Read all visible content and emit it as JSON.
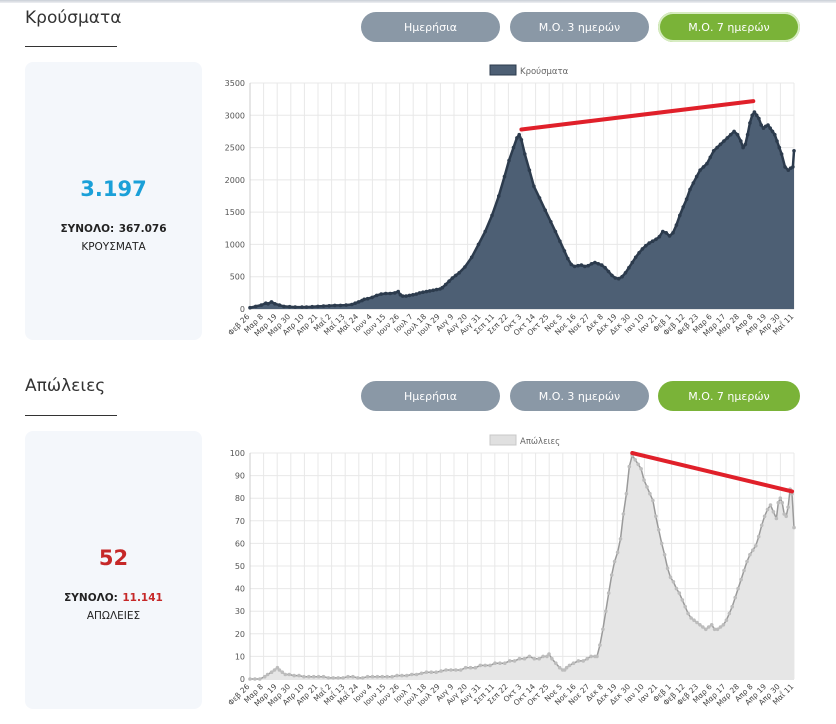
{
  "buttons": {
    "daily": "Ημερήσια",
    "ma3": "Μ.Ο. 3 ημερών",
    "ma7": "Μ.Ο. 7 ημερών"
  },
  "colors": {
    "blue": "#1aa0d8",
    "red": "#c62828",
    "green": "#7ab338",
    "grey": "#8a98a6",
    "cases_fill": "#4d5f74",
    "cases_line": "#2c3b4d",
    "deaths_fill": "#e6e6e6",
    "deaths_line": "#9a9a9a",
    "trend": "#e0202a"
  },
  "cases": {
    "title": "Κρούσματα",
    "value": "3.197",
    "total_label": "ΣΥΝΟΛΟ:",
    "total_value": "367.076",
    "label": "ΚΡΟΥΣΜΑΤΑ"
  },
  "deaths": {
    "title": "Απώλειες",
    "value": "52",
    "total_label": "ΣΥΝΟΛΟ:",
    "total_value": "11.141",
    "label": "ΑΠΩΛΕΙΕΣ"
  },
  "chart_data": [
    {
      "type": "area",
      "series_name": "Κρούσματα",
      "ylim": [
        0,
        3500
      ],
      "yticks": [
        0,
        500,
        1000,
        1500,
        2000,
        2500,
        3000,
        3500
      ],
      "x_labels": [
        "Φεβ 26",
        "Μαρ 8",
        "Μαρ 19",
        "Μαρ 30",
        "Απρ 10",
        "Απρ 21",
        "Μαΐ 2",
        "Μαΐ 13",
        "Μαΐ 24",
        "Ιουν 4",
        "Ιουν 15",
        "Ιουν 26",
        "Ιουλ 7",
        "Ιουλ 18",
        "Ιουλ 29",
        "Αυγ 9",
        "Αυγ 20",
        "Αυγ 31",
        "Σεπ 11",
        "Σεπ 22",
        "Οκτ 3",
        "Οκτ 14",
        "Οκτ 25",
        "Νοε 5",
        "Νοε 16",
        "Νοε 27",
        "Δεκ 8",
        "Δεκ 19",
        "Δεκ 30",
        "Ιαν 10",
        "Ιαν 21",
        "Φεβ 1",
        "Φεβ 12",
        "Φεβ 23",
        "Μαρ 6",
        "Μαρ 17",
        "Μαρ 28",
        "Απρ 8",
        "Απρ 19",
        "Απρ 30",
        "Μαΐ 11"
      ],
      "points": [
        [
          0,
          20
        ],
        [
          5,
          40
        ],
        [
          10,
          60
        ],
        [
          14,
          90
        ],
        [
          16,
          80
        ],
        [
          19,
          110
        ],
        [
          22,
          80
        ],
        [
          26,
          60
        ],
        [
          30,
          40
        ],
        [
          35,
          35
        ],
        [
          40,
          30
        ],
        [
          46,
          30
        ],
        [
          50,
          30
        ],
        [
          55,
          35
        ],
        [
          60,
          40
        ],
        [
          65,
          45
        ],
        [
          70,
          50
        ],
        [
          75,
          55
        ],
        [
          80,
          55
        ],
        [
          85,
          60
        ],
        [
          90,
          70
        ],
        [
          93,
          90
        ],
        [
          96,
          110
        ],
        [
          99,
          130
        ],
        [
          101,
          150
        ],
        [
          104,
          160
        ],
        [
          108,
          180
        ],
        [
          112,
          210
        ],
        [
          116,
          230
        ],
        [
          120,
          240
        ],
        [
          124,
          240
        ],
        [
          128,
          250
        ],
        [
          131,
          270
        ],
        [
          133,
          220
        ],
        [
          135,
          200
        ],
        [
          138,
          200
        ],
        [
          141,
          210
        ],
        [
          144,
          220
        ],
        [
          147,
          230
        ],
        [
          150,
          250
        ],
        [
          153,
          260
        ],
        [
          156,
          270
        ],
        [
          159,
          280
        ],
        [
          162,
          290
        ],
        [
          165,
          300
        ],
        [
          168,
          310
        ],
        [
          170,
          330
        ],
        [
          173,
          380
        ],
        [
          176,
          430
        ],
        [
          179,
          480
        ],
        [
          182,
          520
        ],
        [
          185,
          560
        ],
        [
          190,
          650
        ],
        [
          196,
          800
        ],
        [
          202,
          1000
        ],
        [
          208,
          1200
        ],
        [
          214,
          1450
        ],
        [
          220,
          1750
        ],
        [
          225,
          2050
        ],
        [
          229,
          2300
        ],
        [
          233,
          2500
        ],
        [
          236,
          2650
        ],
        [
          238,
          2700
        ],
        [
          240,
          2620
        ],
        [
          243,
          2400
        ],
        [
          247,
          2150
        ],
        [
          251,
          1900
        ],
        [
          256,
          1720
        ],
        [
          261,
          1530
        ],
        [
          266,
          1350
        ],
        [
          270,
          1200
        ],
        [
          274,
          1050
        ],
        [
          278,
          900
        ],
        [
          281,
          780
        ],
        [
          284,
          690
        ],
        [
          287,
          660
        ],
        [
          290,
          670
        ],
        [
          293,
          680
        ],
        [
          296,
          660
        ],
        [
          299,
          670
        ],
        [
          302,
          700
        ],
        [
          305,
          720
        ],
        [
          308,
          700
        ],
        [
          311,
          680
        ],
        [
          314,
          640
        ],
        [
          317,
          580
        ],
        [
          320,
          520
        ],
        [
          323,
          480
        ],
        [
          326,
          470
        ],
        [
          329,
          500
        ],
        [
          332,
          560
        ],
        [
          335,
          640
        ],
        [
          338,
          720
        ],
        [
          341,
          800
        ],
        [
          344,
          870
        ],
        [
          347,
          930
        ],
        [
          350,
          980
        ],
        [
          353,
          1020
        ],
        [
          356,
          1050
        ],
        [
          359,
          1080
        ],
        [
          362,
          1120
        ],
        [
          365,
          1200
        ],
        [
          368,
          1180
        ],
        [
          371,
          1130
        ],
        [
          374,
          1180
        ],
        [
          377,
          1300
        ],
        [
          380,
          1450
        ],
        [
          383,
          1580
        ],
        [
          386,
          1700
        ],
        [
          389,
          1850
        ],
        [
          392,
          1950
        ],
        [
          395,
          2050
        ],
        [
          398,
          2150
        ],
        [
          401,
          2200
        ],
        [
          404,
          2250
        ],
        [
          407,
          2350
        ],
        [
          410,
          2450
        ],
        [
          413,
          2500
        ],
        [
          416,
          2550
        ],
        [
          419,
          2600
        ],
        [
          422,
          2650
        ],
        [
          425,
          2700
        ],
        [
          428,
          2750
        ],
        [
          431,
          2700
        ],
        [
          434,
          2600
        ],
        [
          436,
          2500
        ],
        [
          438,
          2550
        ],
        [
          440,
          2700
        ],
        [
          442,
          2880
        ],
        [
          444,
          3000
        ],
        [
          446,
          3050
        ],
        [
          448,
          3000
        ],
        [
          450,
          2950
        ],
        [
          452,
          2850
        ],
        [
          454,
          2800
        ],
        [
          456,
          2830
        ],
        [
          458,
          2850
        ],
        [
          460,
          2800
        ],
        [
          462,
          2750
        ],
        [
          464,
          2700
        ],
        [
          466,
          2600
        ],
        [
          468,
          2500
        ],
        [
          470,
          2400
        ],
        [
          473,
          2200
        ],
        [
          476,
          2150
        ],
        [
          478,
          2180
        ],
        [
          480,
          2200
        ],
        [
          481,
          2450
        ]
      ],
      "trend": [
        [
          240,
          2780
        ],
        [
          445,
          3220
        ]
      ]
    },
    {
      "type": "area",
      "series_name": "Απώλειες",
      "ylim": [
        0,
        100
      ],
      "yticks": [
        0,
        10,
        20,
        30,
        40,
        50,
        60,
        70,
        80,
        90,
        100
      ],
      "x_labels": [
        "Φεβ 26",
        "Μαρ 8",
        "Μαρ 19",
        "Μαρ 30",
        "Απρ 10",
        "Απρ 21",
        "Μαΐ 2",
        "Μαΐ 13",
        "Μαΐ 24",
        "Ιουν 4",
        "Ιουν 15",
        "Ιουν 26",
        "Ιουλ 7",
        "Ιουλ 18",
        "Ιουλ 29",
        "Αυγ 9",
        "Αυγ 20",
        "Αυγ 31",
        "Σεπ 11",
        "Σεπ 22",
        "Οκτ 3",
        "Οκτ 14",
        "Οκτ 25",
        "Νοε 5",
        "Νοε 16",
        "Νοε 27",
        "Δεκ 8",
        "Δεκ 19",
        "Δεκ 30",
        "Ιαν 10",
        "Ιαν 21",
        "Φεβ 1",
        "Φεβ 12",
        "Φεβ 23",
        "Μαρ 6",
        "Μαρ 17",
        "Μαρ 28",
        "Απρ 8",
        "Απρ 19",
        "Απρ 30",
        "Μαΐ 11"
      ],
      "points": [
        [
          0,
          0
        ],
        [
          5,
          0
        ],
        [
          10,
          0
        ],
        [
          15,
          1
        ],
        [
          18,
          2
        ],
        [
          22,
          3
        ],
        [
          25,
          4
        ],
        [
          28,
          5
        ],
        [
          30,
          4
        ],
        [
          33,
          3
        ],
        [
          36,
          2
        ],
        [
          40,
          2
        ],
        [
          45,
          1.5
        ],
        [
          50,
          1.5
        ],
        [
          55,
          1
        ],
        [
          60,
          1
        ],
        [
          65,
          1
        ],
        [
          70,
          1
        ],
        [
          75,
          1
        ],
        [
          80,
          0.5
        ],
        [
          85,
          0.5
        ],
        [
          90,
          0.5
        ],
        [
          95,
          0.5
        ],
        [
          100,
          1
        ],
        [
          105,
          1
        ],
        [
          110,
          0.5
        ],
        [
          115,
          0.5
        ],
        [
          120,
          1
        ],
        [
          125,
          1
        ],
        [
          130,
          1
        ],
        [
          135,
          1
        ],
        [
          140,
          1
        ],
        [
          145,
          1
        ],
        [
          150,
          1.5
        ],
        [
          155,
          1.5
        ],
        [
          160,
          1.5
        ],
        [
          165,
          2
        ],
        [
          170,
          2
        ],
        [
          175,
          2.5
        ],
        [
          180,
          3
        ],
        [
          185,
          3
        ],
        [
          190,
          3
        ],
        [
          195,
          3.5
        ],
        [
          200,
          4
        ],
        [
          205,
          4
        ],
        [
          210,
          4
        ],
        [
          215,
          4
        ],
        [
          220,
          5
        ],
        [
          225,
          5
        ],
        [
          230,
          5
        ],
        [
          235,
          6
        ],
        [
          240,
          6
        ],
        [
          245,
          6
        ],
        [
          250,
          7
        ],
        [
          255,
          7
        ],
        [
          260,
          7
        ],
        [
          265,
          8
        ],
        [
          270,
          8
        ],
        [
          275,
          9
        ],
        [
          280,
          9
        ],
        [
          285,
          10
        ],
        [
          290,
          9
        ],
        [
          295,
          9
        ],
        [
          299,
          10
        ],
        [
          303,
          10
        ],
        [
          305,
          11
        ],
        [
          308,
          9
        ],
        [
          312,
          7
        ],
        [
          316,
          5
        ],
        [
          319,
          4
        ],
        [
          321,
          4
        ],
        [
          323,
          5
        ],
        [
          326,
          6
        ],
        [
          330,
          7
        ],
        [
          335,
          8
        ],
        [
          340,
          8
        ],
        [
          344,
          9
        ],
        [
          348,
          10
        ],
        [
          352,
          10
        ],
        [
          354,
          10
        ],
        [
          357,
          15
        ],
        [
          360,
          22
        ],
        [
          363,
          30
        ],
        [
          366,
          38
        ],
        [
          369,
          46
        ],
        [
          372,
          52
        ],
        [
          375,
          56
        ],
        [
          378,
          62
        ],
        [
          381,
          73
        ],
        [
          384,
          82
        ],
        [
          387,
          94
        ],
        [
          390,
          99
        ],
        [
          393,
          97
        ],
        [
          396,
          95
        ],
        [
          399,
          93
        ],
        [
          402,
          88
        ],
        [
          405,
          85
        ],
        [
          408,
          82
        ],
        [
          411,
          79
        ],
        [
          414,
          72
        ],
        [
          417,
          66
        ],
        [
          420,
          60
        ],
        [
          423,
          55
        ],
        [
          426,
          49
        ],
        [
          429,
          45
        ],
        [
          432,
          43
        ],
        [
          435,
          40
        ],
        [
          438,
          38
        ],
        [
          441,
          35
        ],
        [
          444,
          32
        ],
        [
          447,
          29
        ],
        [
          450,
          27
        ],
        [
          453,
          26
        ],
        [
          456,
          25
        ],
        [
          459,
          24
        ],
        [
          462,
          23
        ],
        [
          465,
          22
        ],
        [
          468,
          23
        ],
        [
          471,
          24
        ],
        [
          474,
          22
        ],
        [
          477,
          22
        ],
        [
          480,
          23
        ],
        [
          483,
          24
        ],
        [
          486,
          26
        ],
        [
          489,
          29
        ],
        [
          492,
          32
        ],
        [
          495,
          36
        ],
        [
          498,
          40
        ],
        [
          501,
          44
        ],
        [
          504,
          48
        ],
        [
          507,
          52
        ],
        [
          510,
          55
        ],
        [
          513,
          57
        ],
        [
          516,
          59
        ],
        [
          519,
          63
        ],
        [
          522,
          68
        ],
        [
          525,
          72
        ],
        [
          528,
          75
        ],
        [
          531,
          77
        ],
        [
          534,
          74
        ],
        [
          537,
          71
        ],
        [
          539,
          78
        ],
        [
          541,
          80
        ],
        [
          543,
          78
        ],
        [
          545,
          73
        ],
        [
          547,
          72
        ],
        [
          549,
          76
        ],
        [
          551,
          84
        ],
        [
          553,
          82
        ],
        [
          555,
          67
        ]
      ],
      "trend": [
        [
          390,
          100
        ],
        [
          553,
          83
        ]
      ]
    }
  ]
}
